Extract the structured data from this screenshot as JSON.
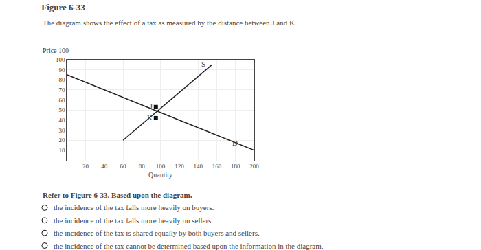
{
  "chart_data": {
    "type": "line",
    "title": "Figure 6-33",
    "subtitle": "The diagram shows the effect of a tax as measured by the distance between J and K.",
    "xlabel": "Quantity",
    "ylabel": "Price 100",
    "xlim": [
      0,
      200
    ],
    "ylim": [
      0,
      100
    ],
    "xticks": [
      20,
      40,
      60,
      80,
      100,
      120,
      140,
      160,
      180,
      200
    ],
    "yticks": [
      10,
      20,
      30,
      40,
      50,
      60,
      70,
      80,
      90,
      100
    ],
    "grid": true,
    "series": [
      {
        "x": [
          0,
          200
        ],
        "values": [
          85,
          10
        ],
        "color": "#222222"
      },
      {
        "x": [
          60,
          155
        ],
        "values": [
          20,
          95
        ],
        "color": "#222222"
      }
    ],
    "points": [
      {
        "label": "J",
        "x": 95,
        "y": 53,
        "color": "#111111",
        "marker": "square"
      },
      {
        "label": "K",
        "x": 95,
        "y": 42,
        "color": "#111111",
        "marker": "square"
      }
    ],
    "annotations": [
      {
        "text": "D",
        "x": 175,
        "y": 12
      },
      {
        "text": "S",
        "x": 142,
        "y": 90
      }
    ],
    "question": "Refer to Figure 6-33. Based upon the diagram,",
    "options": [
      "the incidence of the tax falls more heavily on buyers.",
      "the incidence of the tax falls more heavily on sellers.",
      "the incidence of the tax is shared equally by both buyers and sellers.",
      "the incidence of the tax cannot be determined based upon the information in the diagram."
    ]
  }
}
